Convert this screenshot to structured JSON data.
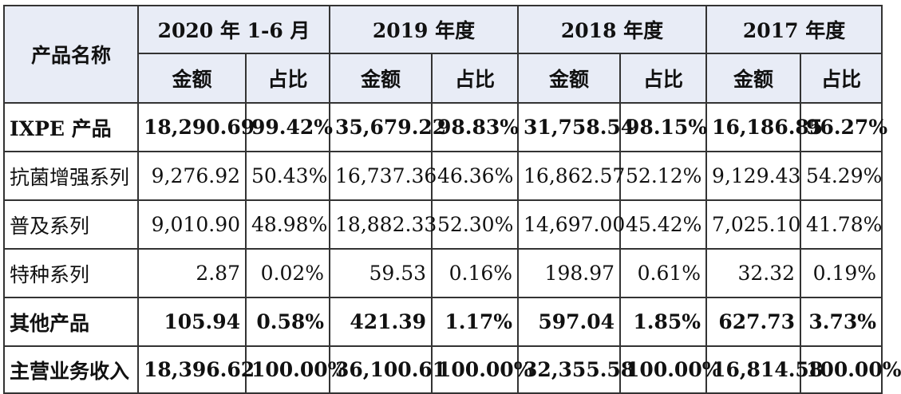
{
  "header": {
    "product_name": "产品名称",
    "periods": [
      "2020 年 1-6 月",
      "2019 年度",
      "2018 年度",
      "2017 年度"
    ],
    "amount": "金额",
    "ratio": "占比"
  },
  "rows": [
    {
      "name": "IXPE 产品",
      "bold": true,
      "values": [
        "18,290.69",
        "99.42%",
        "35,679.22",
        "98.83%",
        "31,758.54",
        "98.15%",
        "16,186.85",
        "96.27%"
      ]
    },
    {
      "name": "抗菌增强系列",
      "bold": false,
      "values": [
        "9,276.92",
        "50.43%",
        "16,737.36",
        "46.36%",
        "16,862.57",
        "52.12%",
        "9,129.43",
        "54.29%"
      ]
    },
    {
      "name": "普及系列",
      "bold": false,
      "values": [
        "9,010.90",
        "48.98%",
        "18,882.33",
        "52.30%",
        "14,697.00",
        "45.42%",
        "7,025.10",
        "41.78%"
      ]
    },
    {
      "name": "特种系列",
      "bold": false,
      "values": [
        "2.87",
        "0.02%",
        "59.53",
        "0.16%",
        "198.97",
        "0.61%",
        "32.32",
        "0.19%"
      ]
    },
    {
      "name": "其他产品",
      "bold": true,
      "values": [
        "105.94",
        "0.58%",
        "421.39",
        "1.17%",
        "597.04",
        "1.85%",
        "627.73",
        "3.73%"
      ]
    },
    {
      "name": "主营业务收入",
      "bold": true,
      "values": [
        "18,396.62",
        "100.00%",
        "36,100.61",
        "100.00%",
        "32,355.58",
        "100.00%",
        "16,814.58",
        "100.00%"
      ]
    }
  ]
}
